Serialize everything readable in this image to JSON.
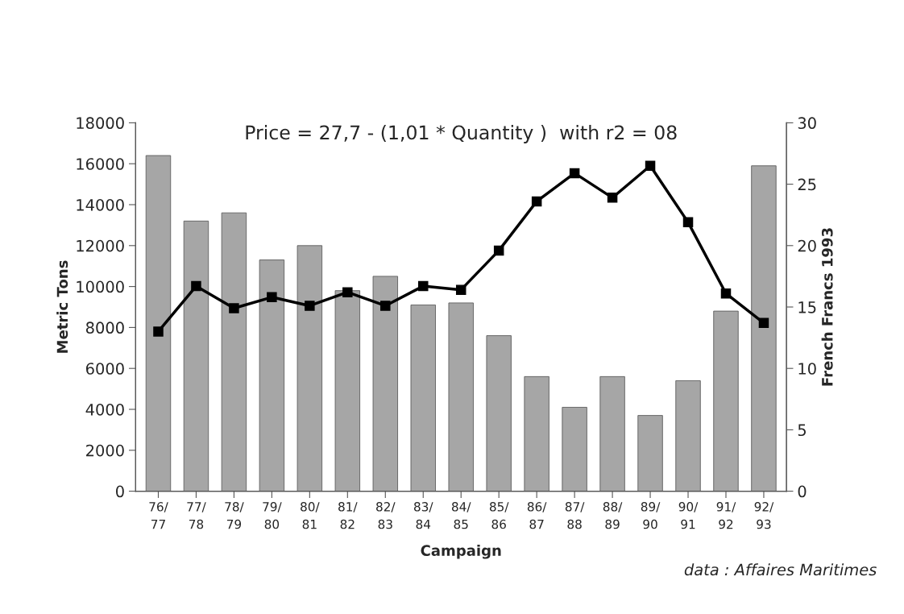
{
  "chart_data": {
    "type": "bar",
    "title": "Price = 27,7 - (1,01 * Quantity )  with r2 = 08",
    "xlabel": "Campaign",
    "ylabel": "Metric Tons",
    "y2label": "French Francs 1993",
    "categories": [
      "76/\n77",
      "77/\n78",
      "78/\n79",
      "79/\n80",
      "80/\n81",
      "81/\n82",
      "82/\n83",
      "83/\n84",
      "84/\n85",
      "85/\n86",
      "86/\n87",
      "87/\n88",
      "88/\n89",
      "89/\n90",
      "90/\n91",
      "91/\n92",
      "92/\n93"
    ],
    "series": [
      {
        "color": "#a6a6a6",
        "values": [
          16400,
          13200,
          13600,
          11300,
          12000,
          9800,
          10500,
          9100,
          9200,
          7600,
          5600,
          4100,
          5600,
          3700,
          5400,
          8800,
          15900
        ]
      },
      {
        "type": "line",
        "axis": "y2",
        "color": "#000000",
        "marker": "square",
        "line_style": "solid",
        "values": [
          13.0,
          16.7,
          14.9,
          15.8,
          15.1,
          16.2,
          15.1,
          16.7,
          16.4,
          19.6,
          23.6,
          25.9,
          23.9,
          26.5,
          21.9,
          16.1,
          13.7
        ]
      }
    ],
    "ylim": [
      0,
      18000
    ],
    "yticks": [
      0,
      2000,
      4000,
      6000,
      8000,
      10000,
      12000,
      14000,
      16000,
      18000
    ],
    "y2lim": [
      0,
      30
    ],
    "y2ticks": [
      0,
      5,
      10,
      15,
      20,
      25,
      30
    ],
    "grid": false,
    "legend": false,
    "annotations": [
      "data : Affaires Maritimes"
    ]
  }
}
